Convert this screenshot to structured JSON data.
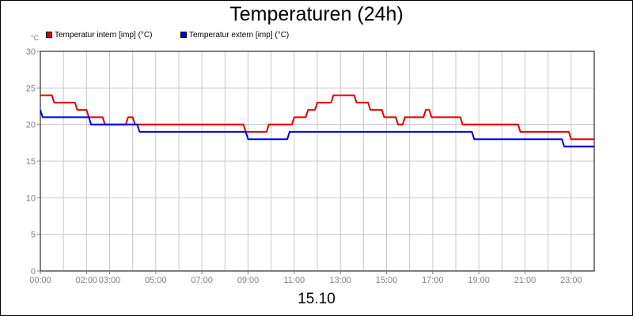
{
  "title": "Temperaturen (24h)",
  "unit": "°C",
  "date": "15.10",
  "legend": [
    {
      "label": "Temperatur intern [imp] (°C)",
      "color": "#e00000"
    },
    {
      "label": "Temperatur extern [imp] (°C)",
      "color": "#0000e0"
    }
  ],
  "chart_data": {
    "type": "line",
    "title": "Temperaturen (24h)",
    "xlabel": "15.10",
    "ylabel": "°C",
    "xlim": [
      0,
      24
    ],
    "ylim": [
      0,
      30
    ],
    "yticks": [
      0,
      5,
      10,
      15,
      20,
      25,
      30
    ],
    "xticks": [
      {
        "h": 0,
        "label": "00:00"
      },
      {
        "h": 2,
        "label": "02:00"
      },
      {
        "h": 3,
        "label": "03:00"
      },
      {
        "h": 5,
        "label": "05:00"
      },
      {
        "h": 7,
        "label": "07:00"
      },
      {
        "h": 9,
        "label": "09:00"
      },
      {
        "h": 11,
        "label": "11:00"
      },
      {
        "h": 13,
        "label": "13:00"
      },
      {
        "h": 15,
        "label": "15:00"
      },
      {
        "h": 17,
        "label": "17:00"
      },
      {
        "h": 19,
        "label": "19:00"
      },
      {
        "h": 21,
        "label": "21:00"
      },
      {
        "h": 23,
        "label": "23:00"
      }
    ],
    "xgrid": [
      0,
      1,
      2,
      3,
      4,
      5,
      6,
      7,
      8,
      9,
      10,
      11,
      12,
      13,
      14,
      15,
      16,
      17,
      18,
      19,
      20,
      21,
      22,
      23,
      24
    ],
    "grid": true,
    "legend_position": "top-left",
    "series": [
      {
        "name": "Temperatur intern [imp] (°C)",
        "color": "#e00000",
        "points": [
          [
            0.0,
            24
          ],
          [
            0.5,
            24
          ],
          [
            0.6,
            23
          ],
          [
            1.5,
            23
          ],
          [
            1.6,
            22
          ],
          [
            2.0,
            22
          ],
          [
            2.1,
            21
          ],
          [
            2.7,
            21
          ],
          [
            2.8,
            20
          ],
          [
            3.7,
            20
          ],
          [
            3.8,
            21
          ],
          [
            4.0,
            21
          ],
          [
            4.1,
            20
          ],
          [
            8.8,
            20
          ],
          [
            8.9,
            19
          ],
          [
            9.8,
            19
          ],
          [
            9.9,
            20
          ],
          [
            10.9,
            20
          ],
          [
            11.0,
            21
          ],
          [
            11.5,
            21
          ],
          [
            11.6,
            22
          ],
          [
            11.9,
            22
          ],
          [
            12.0,
            23
          ],
          [
            12.6,
            23
          ],
          [
            12.7,
            24
          ],
          [
            13.6,
            24
          ],
          [
            13.7,
            23
          ],
          [
            14.2,
            23
          ],
          [
            14.3,
            22
          ],
          [
            14.8,
            22
          ],
          [
            14.9,
            21
          ],
          [
            15.4,
            21
          ],
          [
            15.5,
            20
          ],
          [
            15.7,
            20
          ],
          [
            15.8,
            21
          ],
          [
            16.6,
            21
          ],
          [
            16.7,
            22
          ],
          [
            16.85,
            22
          ],
          [
            16.95,
            21
          ],
          [
            18.2,
            21
          ],
          [
            18.3,
            20
          ],
          [
            20.7,
            20
          ],
          [
            20.8,
            19
          ],
          [
            22.9,
            19
          ],
          [
            23.0,
            18
          ],
          [
            24.0,
            18
          ]
        ]
      },
      {
        "name": "Temperatur extern [imp] (°C)",
        "color": "#0000e0",
        "points": [
          [
            0.0,
            22
          ],
          [
            0.1,
            21
          ],
          [
            2.1,
            21
          ],
          [
            2.2,
            20
          ],
          [
            4.2,
            20
          ],
          [
            4.3,
            19
          ],
          [
            8.9,
            19
          ],
          [
            9.0,
            18
          ],
          [
            10.7,
            18
          ],
          [
            10.8,
            19
          ],
          [
            18.7,
            19
          ],
          [
            18.8,
            18
          ],
          [
            22.6,
            18
          ],
          [
            22.7,
            17
          ],
          [
            24.0,
            17
          ]
        ]
      }
    ]
  }
}
